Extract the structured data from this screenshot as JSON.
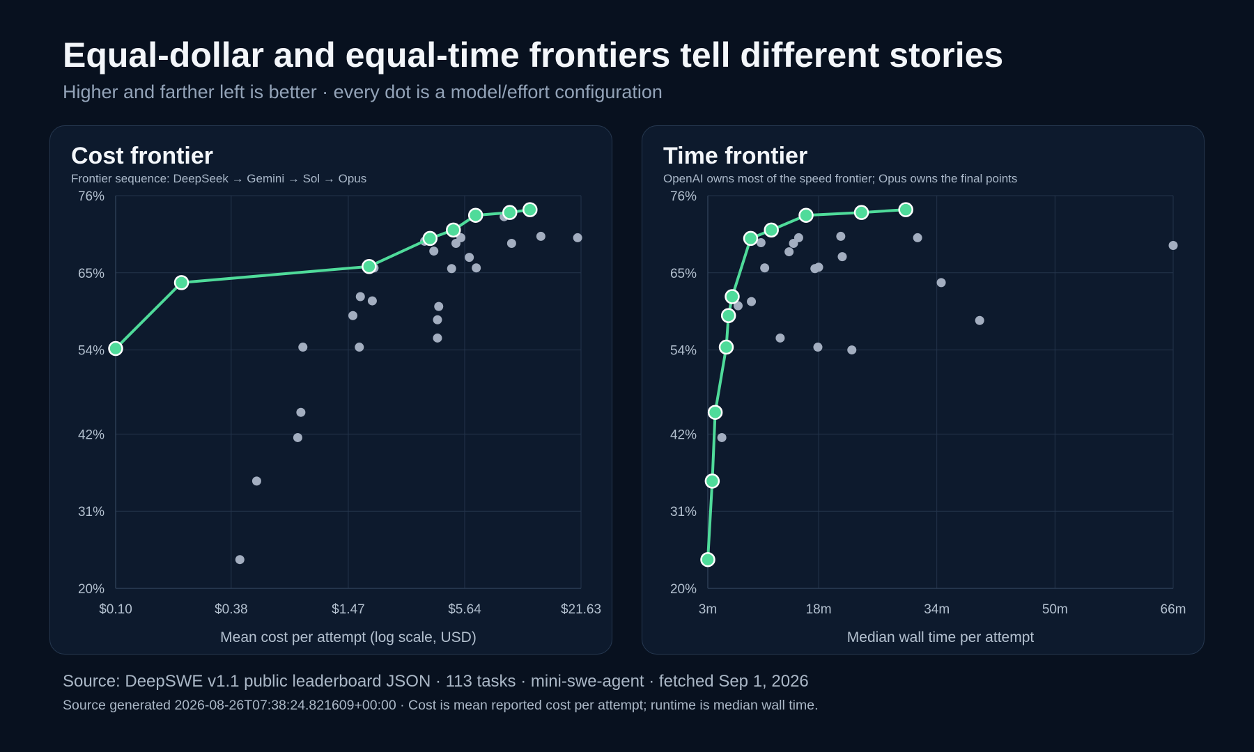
{
  "header": {
    "title": "Equal-dollar and equal-time frontiers tell different stories",
    "subtitle": "Higher and farther left is better · every dot is a model/effort configuration"
  },
  "footer": {
    "source": "Source: DeepSWE v1.1 public leaderboard JSON · 113 tasks · mini-swe-agent · fetched Sep 1, 2026",
    "note": "Source generated 2026-08-26T07:38:24.821609+00:00 · Cost is mean reported cost per attempt; runtime is median wall time."
  },
  "colors": {
    "background": "#08111f",
    "panel": "#0d1a2d",
    "frontier": "#4fdb9a",
    "dots": "#a3aec0",
    "grid": "#24344b"
  },
  "chart_data": [
    {
      "type": "scatter",
      "title": "Cost frontier",
      "subtitle": "Frontier sequence: DeepSeek → Gemini → Sol → Opus",
      "xlabel": "Mean cost per attempt (log scale, USD)",
      "ylabel": "",
      "x_scale": "log",
      "xlim": [
        0.1,
        21.63
      ],
      "ylim": [
        20,
        76
      ],
      "x_ticks": [
        0.1,
        0.38,
        1.47,
        5.64,
        21.63
      ],
      "x_tick_labels": [
        "$0.10",
        "$0.38",
        "$1.47",
        "$5.64",
        "$21.63"
      ],
      "y_ticks": [
        20,
        31,
        42,
        54,
        65,
        76
      ],
      "y_tick_labels": [
        "20%",
        "31%",
        "42%",
        "54%",
        "65%",
        "76%"
      ],
      "grid": true,
      "legend": "none",
      "points": [
        {
          "x": 0.42,
          "y": 24.1
        },
        {
          "x": 0.51,
          "y": 35.3
        },
        {
          "x": 0.82,
          "y": 41.5
        },
        {
          "x": 0.85,
          "y": 45.1
        },
        {
          "x": 0.87,
          "y": 54.4
        },
        {
          "x": 1.55,
          "y": 58.9
        },
        {
          "x": 1.67,
          "y": 54.4
        },
        {
          "x": 1.69,
          "y": 61.6
        },
        {
          "x": 1.94,
          "y": 61.0
        },
        {
          "x": 1.98,
          "y": 65.7
        },
        {
          "x": 3.55,
          "y": 69.5
        },
        {
          "x": 3.95,
          "y": 68.1
        },
        {
          "x": 4.12,
          "y": 58.3
        },
        {
          "x": 4.12,
          "y": 55.7
        },
        {
          "x": 4.18,
          "y": 60.2
        },
        {
          "x": 4.85,
          "y": 65.6
        },
        {
          "x": 5.1,
          "y": 69.2
        },
        {
          "x": 5.4,
          "y": 70.0
        },
        {
          "x": 5.95,
          "y": 67.2
        },
        {
          "x": 6.45,
          "y": 65.7
        },
        {
          "x": 8.9,
          "y": 73.0
        },
        {
          "x": 9.7,
          "y": 69.2
        },
        {
          "x": 13.6,
          "y": 70.2
        },
        {
          "x": 20.8,
          "y": 70.0
        }
      ],
      "frontier": [
        {
          "x": 0.1,
          "y": 54.2
        },
        {
          "x": 0.214,
          "y": 63.6
        },
        {
          "x": 1.87,
          "y": 65.9
        },
        {
          "x": 3.78,
          "y": 69.9
        },
        {
          "x": 4.95,
          "y": 71.1
        },
        {
          "x": 6.4,
          "y": 73.2
        },
        {
          "x": 9.5,
          "y": 73.6
        },
        {
          "x": 12.0,
          "y": 74.0
        }
      ]
    },
    {
      "type": "scatter",
      "title": "Time frontier",
      "subtitle": "OpenAI owns most of the speed frontier; Opus owns the final points",
      "xlabel": "Median wall time per attempt",
      "ylabel": "",
      "x_scale": "linear",
      "xlim": [
        3,
        66
      ],
      "ylim": [
        20,
        76
      ],
      "x_ticks": [
        3,
        18,
        34,
        50,
        66
      ],
      "x_tick_labels": [
        "3m",
        "18m",
        "34m",
        "50m",
        "66m"
      ],
      "y_ticks": [
        20,
        31,
        42,
        54,
        65,
        76
      ],
      "y_tick_labels": [
        "20%",
        "31%",
        "42%",
        "54%",
        "65%",
        "76%"
      ],
      "grid": true,
      "legend": "none",
      "points": [
        {
          "x": 4.9,
          "y": 41.5
        },
        {
          "x": 7.1,
          "y": 60.3
        },
        {
          "x": 8.9,
          "y": 60.9
        },
        {
          "x": 10.2,
          "y": 69.3
        },
        {
          "x": 10.7,
          "y": 65.7
        },
        {
          "x": 12.8,
          "y": 55.7
        },
        {
          "x": 14.0,
          "y": 68.0
        },
        {
          "x": 14.6,
          "y": 69.2
        },
        {
          "x": 15.3,
          "y": 70.0
        },
        {
          "x": 17.5,
          "y": 65.6
        },
        {
          "x": 18.0,
          "y": 65.8
        },
        {
          "x": 17.9,
          "y": 54.4
        },
        {
          "x": 21.0,
          "y": 70.2
        },
        {
          "x": 21.2,
          "y": 67.3
        },
        {
          "x": 22.5,
          "y": 54.0
        },
        {
          "x": 31.4,
          "y": 70.0
        },
        {
          "x": 34.6,
          "y": 63.6
        },
        {
          "x": 39.8,
          "y": 58.2
        },
        {
          "x": 66.0,
          "y": 68.9
        }
      ],
      "frontier": [
        {
          "x": 3.0,
          "y": 24.1
        },
        {
          "x": 3.6,
          "y": 35.3
        },
        {
          "x": 4.0,
          "y": 45.1
        },
        {
          "x": 5.5,
          "y": 54.4
        },
        {
          "x": 5.8,
          "y": 58.9
        },
        {
          "x": 6.3,
          "y": 61.6
        },
        {
          "x": 8.8,
          "y": 69.9
        },
        {
          "x": 11.6,
          "y": 71.1
        },
        {
          "x": 16.3,
          "y": 73.2
        },
        {
          "x": 23.8,
          "y": 73.6
        },
        {
          "x": 29.8,
          "y": 74.0
        }
      ]
    }
  ]
}
